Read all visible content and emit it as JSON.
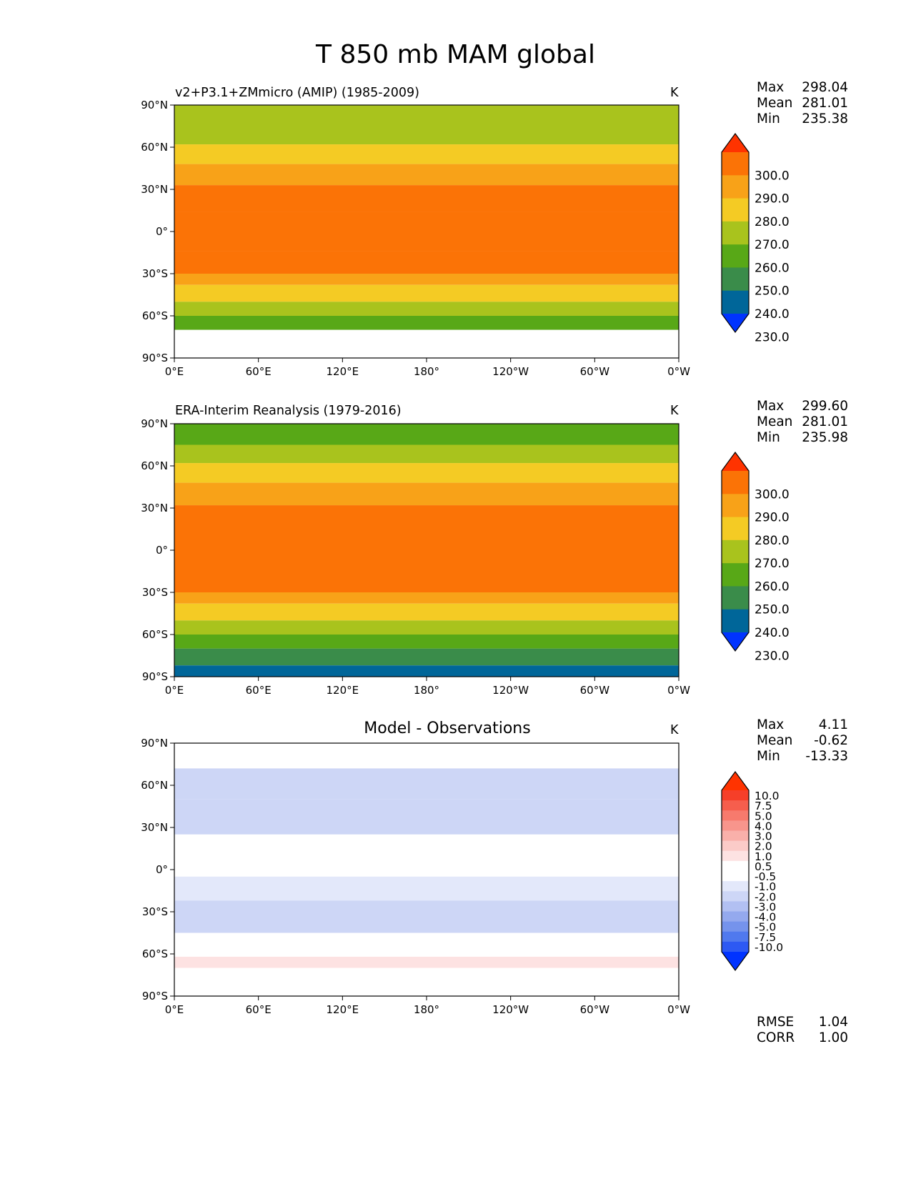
{
  "figure_title": "T 850 mb MAM global",
  "colors": {
    "abs_levels": [
      "#0033ff",
      "#006699",
      "#3a8c4a",
      "#58a817",
      "#a9c31d",
      "#f4cb24",
      "#f8a218",
      "#fb7306",
      "#ff3300"
    ],
    "diff_levels": [
      "#0033ff",
      "#2d59f3",
      "#5079ee",
      "#7593ec",
      "#94a9ee",
      "#b2c0f2",
      "#cdd6f6",
      "#e3e8fa",
      "#ffffff",
      "#ffffff",
      "#fde2e2",
      "#fbcbc8",
      "#f9b0aa",
      "#f8958c",
      "#f77a6d",
      "#f65e4d",
      "#f63f29",
      "#ff3300"
    ],
    "missing": "#ffffff"
  },
  "chart_data": [
    {
      "type": "heatmap",
      "title": "v2+P3.1+ZMmicro (AMIP) (1985-2009)",
      "units": "K",
      "xticks": [
        "0°E",
        "60°E",
        "120°E",
        "180°",
        "120°W",
        "60°W",
        "0°W"
      ],
      "yticks": [
        "90°N",
        "60°N",
        "30°N",
        "0°",
        "30°S",
        "60°S",
        "90°S"
      ],
      "xlim": [
        0,
        360
      ],
      "ylim": [
        -90,
        90
      ],
      "stats": {
        "max_label": "Max",
        "max": "298.04",
        "mean_label": "Mean",
        "mean": "281.01",
        "min_label": "Min",
        "min": "235.38"
      },
      "colorbar": {
        "ticks": [
          "300.0",
          "290.0",
          "280.0",
          "270.0",
          "260.0",
          "250.0",
          "240.0",
          "230.0"
        ]
      },
      "zonal_bands": [
        {
          "lat_from": 90,
          "lat_to": 75,
          "level": 260
        },
        {
          "lat_from": 75,
          "lat_to": 62,
          "level": 260
        },
        {
          "lat_from": 62,
          "lat_to": 48,
          "level": 270
        },
        {
          "lat_from": 48,
          "lat_to": 33,
          "level": 280
        },
        {
          "lat_from": 33,
          "lat_to": 14,
          "level": 290
        },
        {
          "lat_from": 14,
          "lat_to": -14,
          "level": 290
        },
        {
          "lat_from": -14,
          "lat_to": -30,
          "level": 290
        },
        {
          "lat_from": -30,
          "lat_to": -38,
          "level": 280
        },
        {
          "lat_from": -38,
          "lat_to": -50,
          "level": 270
        },
        {
          "lat_from": -50,
          "lat_to": -60,
          "level": 260
        },
        {
          "lat_from": -60,
          "lat_to": -70,
          "level": 250
        },
        {
          "lat_from": -70,
          "lat_to": -90,
          "level": null
        }
      ]
    },
    {
      "type": "heatmap",
      "title": "ERA-Interim Reanalysis (1979-2016)",
      "units": "K",
      "xticks": [
        "0°E",
        "60°E",
        "120°E",
        "180°",
        "120°W",
        "60°W",
        "0°W"
      ],
      "yticks": [
        "90°N",
        "60°N",
        "30°N",
        "0°",
        "30°S",
        "60°S",
        "90°S"
      ],
      "xlim": [
        0,
        360
      ],
      "ylim": [
        -90,
        90
      ],
      "stats": {
        "max_label": "Max",
        "max": "299.60",
        "mean_label": "Mean",
        "mean": "281.01",
        "min_label": "Min",
        "min": "235.98"
      },
      "colorbar": {
        "ticks": [
          "300.0",
          "290.0",
          "280.0",
          "270.0",
          "260.0",
          "250.0",
          "240.0",
          "230.0"
        ]
      },
      "zonal_bands": [
        {
          "lat_from": 90,
          "lat_to": 75,
          "level": 250
        },
        {
          "lat_from": 75,
          "lat_to": 62,
          "level": 260
        },
        {
          "lat_from": 62,
          "lat_to": 48,
          "level": 270
        },
        {
          "lat_from": 48,
          "lat_to": 32,
          "level": 280
        },
        {
          "lat_from": 32,
          "lat_to": -15,
          "level": 290
        },
        {
          "lat_from": -15,
          "lat_to": -30,
          "level": 290
        },
        {
          "lat_from": -30,
          "lat_to": -38,
          "level": 280
        },
        {
          "lat_from": -38,
          "lat_to": -50,
          "level": 270
        },
        {
          "lat_from": -50,
          "lat_to": -60,
          "level": 260
        },
        {
          "lat_from": -60,
          "lat_to": -70,
          "level": 250
        },
        {
          "lat_from": -70,
          "lat_to": -82,
          "level": 240
        },
        {
          "lat_from": -82,
          "lat_to": -90,
          "level": 230
        }
      ]
    },
    {
      "type": "heatmap",
      "title": "Model - Observations",
      "units": "K",
      "xticks": [
        "0°E",
        "60°E",
        "120°E",
        "180°",
        "120°W",
        "60°W",
        "0°W"
      ],
      "yticks": [
        "90°N",
        "60°N",
        "30°N",
        "0°",
        "30°S",
        "60°S",
        "90°S"
      ],
      "xlim": [
        0,
        360
      ],
      "ylim": [
        -90,
        90
      ],
      "stats": {
        "max_label": "Max",
        "max": "4.11",
        "mean_label": "Mean",
        "mean": "-0.62",
        "min_label": "Min",
        "min": "-13.33"
      },
      "colorbar": {
        "ticks": [
          "10.0",
          "7.5",
          "5.0",
          "4.0",
          "3.0",
          "2.0",
          "1.0",
          "0.5",
          "-0.5",
          "-1.0",
          "-2.0",
          "-3.0",
          "-4.0",
          "-5.0",
          "-7.5",
          "-10.0"
        ]
      },
      "metrics": {
        "rmse_label": "RMSE",
        "rmse": "1.04",
        "corr_label": "CORR",
        "corr": "1.00"
      },
      "zonal_bands": [
        {
          "lat_from": 90,
          "lat_to": 72,
          "level": 0
        },
        {
          "lat_from": 72,
          "lat_to": 50,
          "level": -1.5
        },
        {
          "lat_from": 50,
          "lat_to": 25,
          "level": -1.5
        },
        {
          "lat_from": 25,
          "lat_to": -5,
          "level": 0
        },
        {
          "lat_from": -5,
          "lat_to": -22,
          "level": -0.7
        },
        {
          "lat_from": -22,
          "lat_to": -45,
          "level": -1.5
        },
        {
          "lat_from": -45,
          "lat_to": -62,
          "level": 0
        },
        {
          "lat_from": -62,
          "lat_to": -70,
          "level": 0.7
        },
        {
          "lat_from": -70,
          "lat_to": -90,
          "level": null
        }
      ]
    }
  ]
}
